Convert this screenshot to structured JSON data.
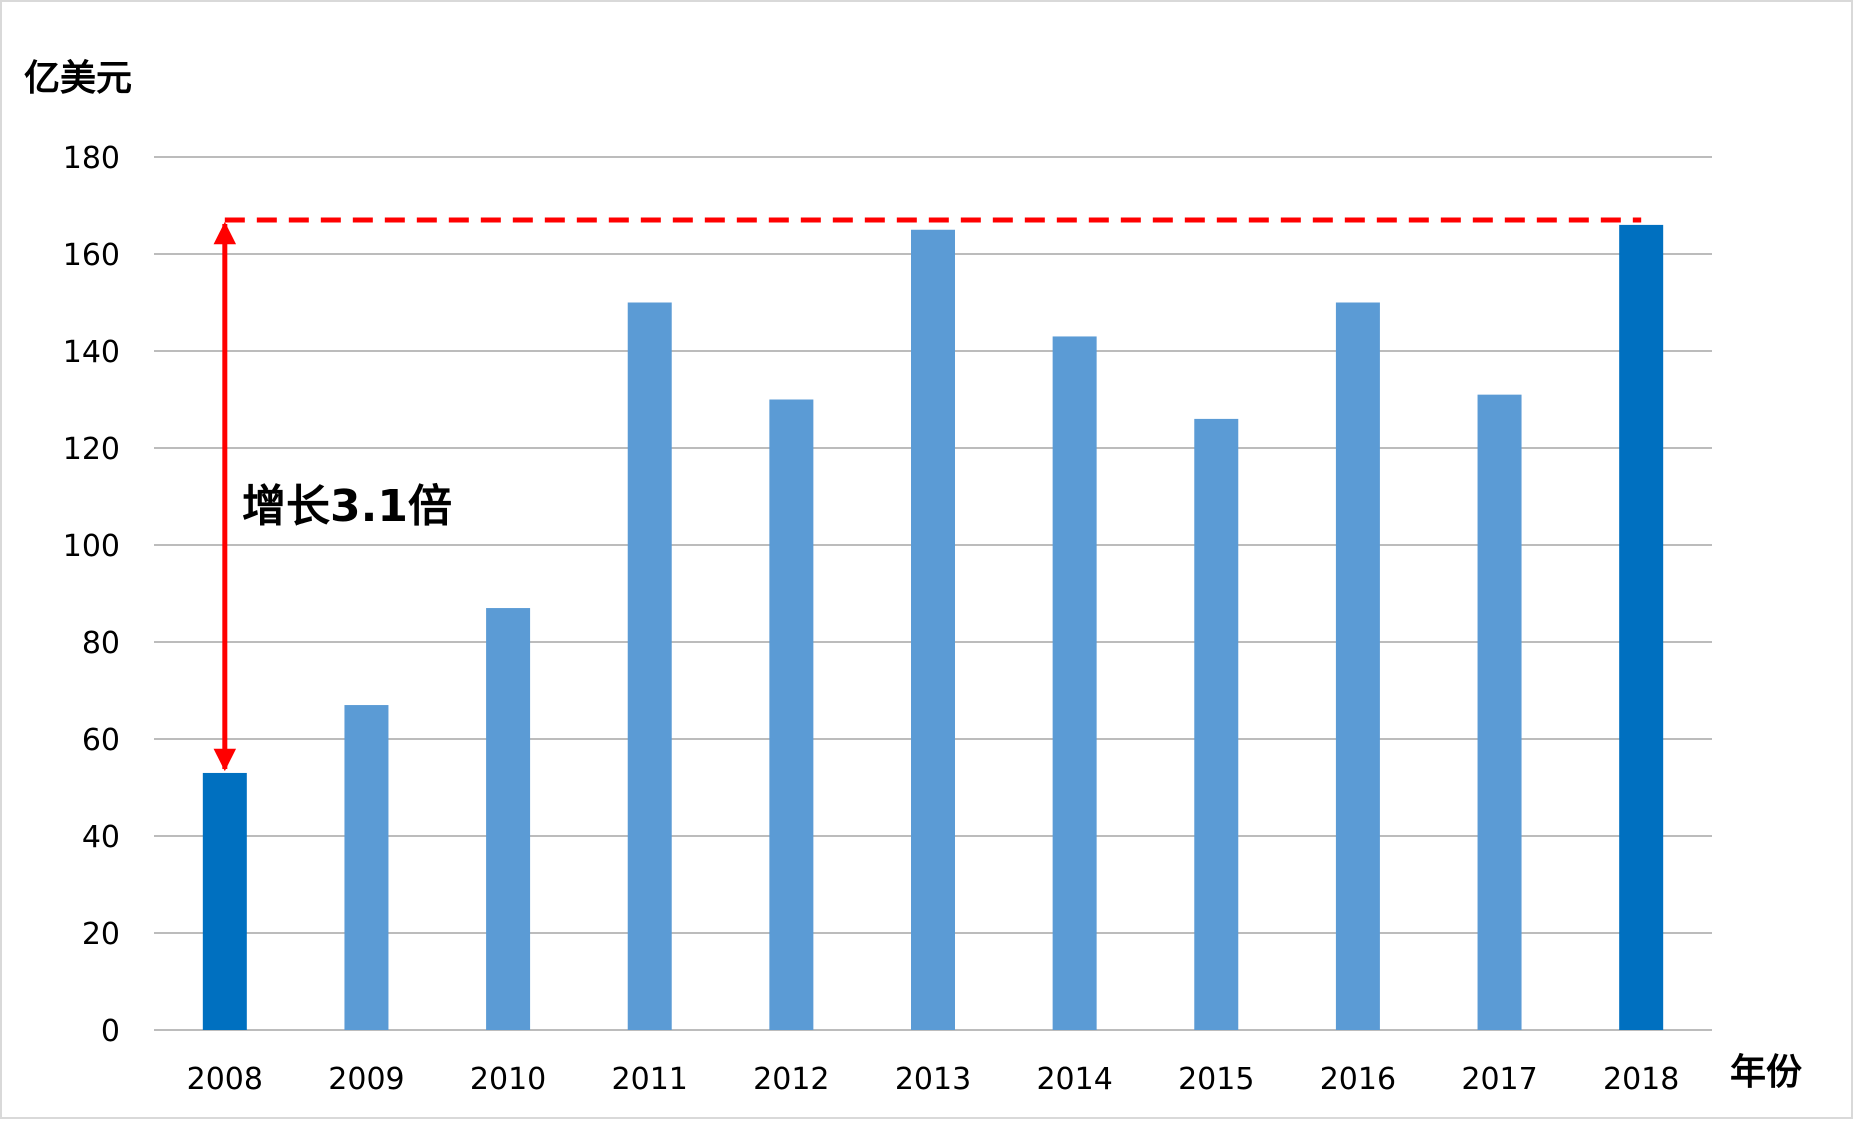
{
  "chart_data": {
    "type": "bar",
    "ylabel": "亿美元",
    "xlabel": "年份",
    "categories": [
      "2008",
      "2009",
      "2010",
      "2011",
      "2012",
      "2013",
      "2014",
      "2015",
      "2016",
      "2017",
      "2018"
    ],
    "values": [
      53,
      67,
      87,
      150,
      130,
      165,
      143,
      126,
      150,
      131,
      166
    ],
    "highlighted_categories": [
      "2008",
      "2018"
    ],
    "ylim": [
      0,
      180
    ],
    "yticks": [
      0,
      20,
      40,
      60,
      80,
      100,
      120,
      140,
      160,
      180
    ],
    "grid": "horizontal",
    "legend": "none",
    "annotation": {
      "text": "增长3.1倍",
      "from_category": "2008",
      "to_category": "2018",
      "reference_value": 167
    },
    "colors": {
      "bar": "#5b9bd5",
      "bar_highlight": "#0070c0",
      "annotation": "#ff0000",
      "grid": "#a6a6a6",
      "text": "#000000"
    }
  }
}
